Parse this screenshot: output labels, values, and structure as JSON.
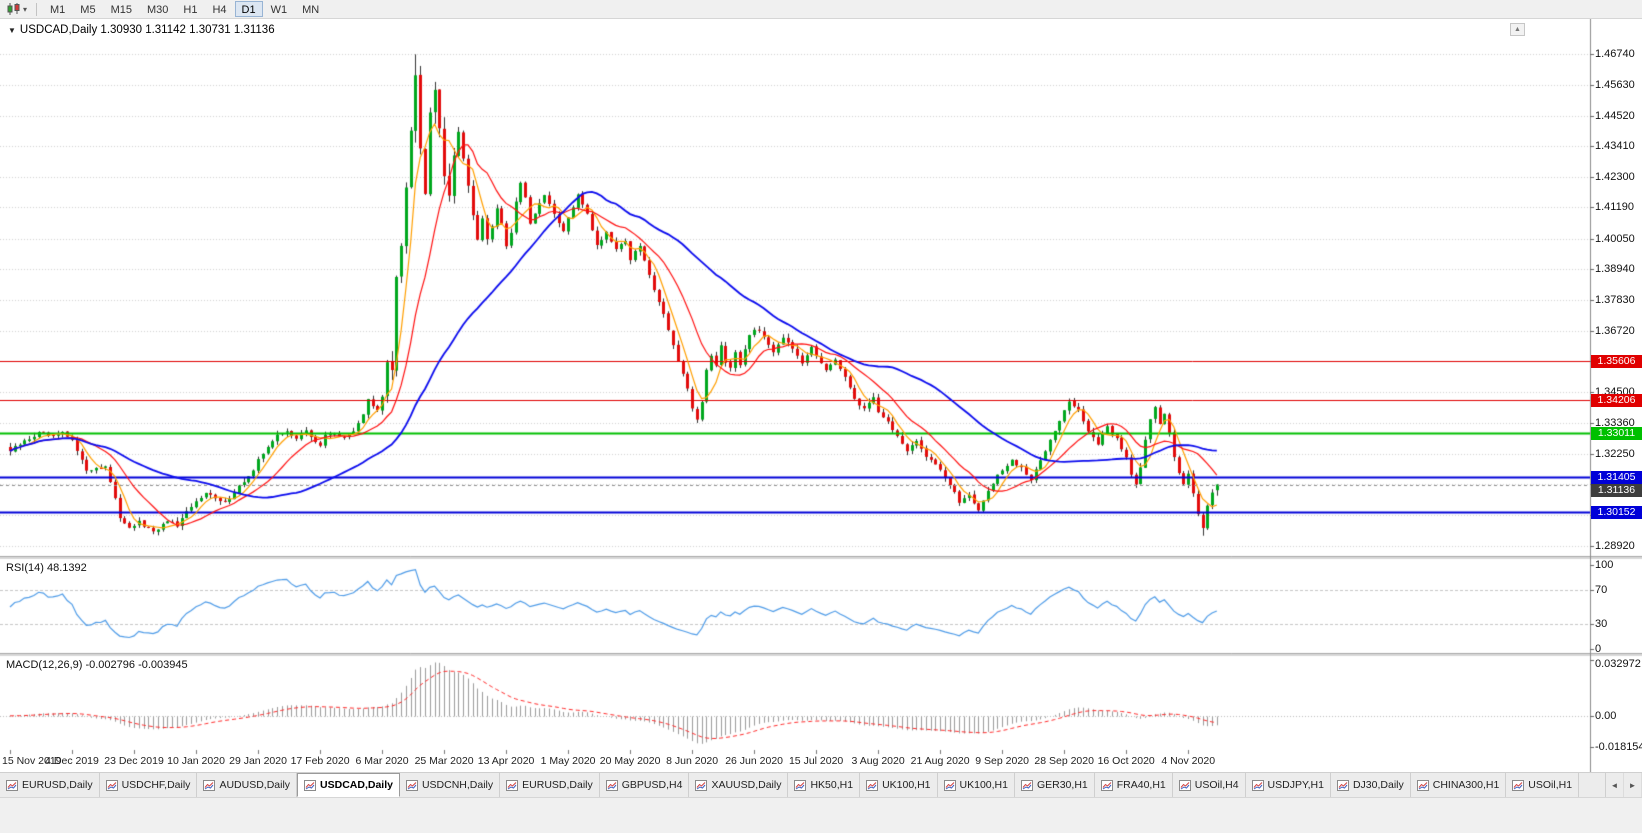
{
  "toolbar": {
    "timeframes": [
      "M1",
      "M5",
      "M15",
      "M30",
      "H1",
      "H4",
      "D1",
      "W1",
      "MN"
    ],
    "active_timeframe": "D1",
    "dropdown_icon": "▾"
  },
  "chart": {
    "title_line": "USDCAD,Daily 1.30930 1.31142 1.30731 1.31136",
    "expand_icon": "▼",
    "scroll_up_icon": "▲",
    "price_axis_labels": [
      "1.46740",
      "1.45630",
      "1.44520",
      "1.43410",
      "1.42300",
      "1.41190",
      "1.40050",
      "1.38940",
      "1.37830",
      "1.36720",
      "1.35610",
      "1.34500",
      "1.33360",
      "1.32250",
      "1.31140",
      "1.30030",
      "1.28920"
    ],
    "levels": [
      {
        "label": "1.35606",
        "price": 1.35606,
        "color": "#e00000",
        "width": 1
      },
      {
        "label": "1.34206",
        "price": 1.34206,
        "color": "#e00000",
        "width": 1
      },
      {
        "label": "1.33011",
        "price": 1.33011,
        "color": "#00c000",
        "width": 2
      },
      {
        "label": "1.31405",
        "price": 1.31405,
        "color": "#0000d8",
        "width": 2
      },
      {
        "label": "1.30152",
        "price": 1.30152,
        "color": "#0000d8",
        "width": 2
      }
    ],
    "current_price": {
      "label": "1.31136",
      "value": 1.31136,
      "color": "#3d3d3d"
    },
    "date_labels": [
      "15 Nov 2019",
      "4 Dec 2019",
      "23 Dec 2019",
      "10 Jan 2020",
      "29 Jan 2020",
      "17 Feb 2020",
      "6 Mar 2020",
      "25 Mar 2020",
      "13 Apr 2020",
      "1 May 2020",
      "20 May 2020",
      "8 Jun 2020",
      "26 Jun 2020",
      "15 Jul 2020",
      "3 Aug 2020",
      "21 Aug 2020",
      "9 Sep 2020",
      "28 Sep 2020",
      "16 Oct 2020",
      "4 Nov 2020"
    ]
  },
  "rsi": {
    "title": "RSI(14) 48.1392",
    "period": 14,
    "current_value": "48.1392",
    "scale_labels": [
      "100",
      "70",
      "30",
      "0"
    ]
  },
  "macd": {
    "title": "MACD(12,26,9) -0.002796 -0.003945",
    "params": "12,26,9",
    "main_value": "-0.002796",
    "signal_value": "-0.003945",
    "scale_labels": [
      "0.032972",
      "0.00",
      "-0.018154"
    ]
  },
  "tabs": {
    "items": [
      "EURUSD,Daily",
      "USDCHF,Daily",
      "AUDUSD,Daily",
      "USDCAD,Daily",
      "USDCNH,Daily",
      "EURUSD,Daily",
      "GBPUSD,H4",
      "XAUUSD,Daily",
      "HK50,H1",
      "UK100,H1",
      "UK100,H1",
      "GER30,H1",
      "FRA40,H1",
      "USOil,H4",
      "USDJPY,H1",
      "DJ30,Daily",
      "CHINA300,H1",
      "USOil,H1"
    ],
    "active_index": 3,
    "scroll_left_icon": "◄",
    "scroll_right_icon": "►"
  },
  "chart_data": {
    "type": "candlestick",
    "symbol": "USDCAD",
    "timeframe": "Daily",
    "bars": 254,
    "label_every_bars": 13,
    "first_candle_x": 10,
    "candle_step": 4.77,
    "y_range": [
      1.2858,
      1.4795
    ],
    "last_bar": {
      "open": 1.3093,
      "high": 1.31142,
      "low": 1.30731,
      "close": 1.31136
    },
    "session_high": {
      "index": 85,
      "price": 1.4674
    },
    "session_low": {
      "index": 250,
      "price": 1.2928
    },
    "price_path_anchors": [
      [
        0,
        1.3235
      ],
      [
        3,
        1.327
      ],
      [
        6,
        1.33
      ],
      [
        9,
        1.3285
      ],
      [
        11,
        1.33
      ],
      [
        13,
        1.327
      ],
      [
        15,
        1.321
      ],
      [
        16,
        1.316
      ],
      [
        18,
        1.3175
      ],
      [
        20,
        1.318
      ],
      [
        21,
        1.312
      ],
      [
        23,
        1.2995
      ],
      [
        25,
        1.296
      ],
      [
        27,
        1.2975
      ],
      [
        29,
        1.295
      ],
      [
        31,
        1.2945
      ],
      [
        33,
        1.2985
      ],
      [
        35,
        1.296
      ],
      [
        37,
        1.301
      ],
      [
        39,
        1.305
      ],
      [
        41,
        1.309
      ],
      [
        43,
        1.306
      ],
      [
        45,
        1.3045
      ],
      [
        47,
        1.309
      ],
      [
        49,
        1.3125
      ],
      [
        51,
        1.316
      ],
      [
        52,
        1.32
      ],
      [
        54,
        1.3255
      ],
      [
        56,
        1.329
      ],
      [
        58,
        1.3305
      ],
      [
        60,
        1.3285
      ],
      [
        62,
        1.3305
      ],
      [
        64,
        1.327
      ],
      [
        65,
        1.3255
      ],
      [
        66,
        1.329
      ],
      [
        68,
        1.3305
      ],
      [
        70,
        1.328
      ],
      [
        72,
        1.331
      ],
      [
        74,
        1.337
      ],
      [
        75,
        1.342
      ],
      [
        76,
        1.3395
      ],
      [
        77,
        1.338
      ],
      [
        78,
        1.343
      ],
      [
        79,
        1.356
      ],
      [
        80,
        1.354
      ],
      [
        81,
        1.386
      ],
      [
        82,
        1.398
      ],
      [
        83,
        1.418
      ],
      [
        84,
        1.439
      ],
      [
        85,
        1.46
      ],
      [
        86,
        1.435
      ],
      [
        87,
        1.418
      ],
      [
        88,
        1.448
      ],
      [
        89,
        1.455
      ],
      [
        90,
        1.44
      ],
      [
        91,
        1.425
      ],
      [
        92,
        1.418
      ],
      [
        93,
        1.432
      ],
      [
        94,
        1.44
      ],
      [
        95,
        1.431
      ],
      [
        96,
        1.418
      ],
      [
        97,
        1.409
      ],
      [
        98,
        1.402
      ],
      [
        99,
        1.408
      ],
      [
        100,
        1.399
      ],
      [
        101,
        1.405
      ],
      [
        102,
        1.412
      ],
      [
        103,
        1.406
      ],
      [
        104,
        1.398
      ],
      [
        105,
        1.403
      ],
      [
        106,
        1.414
      ],
      [
        107,
        1.421
      ],
      [
        108,
        1.415
      ],
      [
        109,
        1.406
      ],
      [
        110,
        1.409
      ],
      [
        112,
        1.417
      ],
      [
        114,
        1.409
      ],
      [
        116,
        1.403
      ],
      [
        117,
        1.408
      ],
      [
        119,
        1.416
      ],
      [
        121,
        1.41
      ],
      [
        123,
        1.398
      ],
      [
        125,
        1.403
      ],
      [
        127,
        1.397
      ],
      [
        129,
        1.4
      ],
      [
        130,
        1.393
      ],
      [
        132,
        1.398
      ],
      [
        134,
        1.387
      ],
      [
        136,
        1.378
      ],
      [
        138,
        1.368
      ],
      [
        140,
        1.356
      ],
      [
        142,
        1.345
      ],
      [
        143,
        1.339
      ],
      [
        144,
        1.335
      ],
      [
        145,
        1.342
      ],
      [
        146,
        1.352
      ],
      [
        147,
        1.358
      ],
      [
        148,
        1.355
      ],
      [
        149,
        1.362
      ],
      [
        150,
        1.356
      ],
      [
        151,
        1.354
      ],
      [
        152,
        1.36
      ],
      [
        153,
        1.355
      ],
      [
        154,
        1.361
      ],
      [
        155,
        1.366
      ],
      [
        156,
        1.368
      ],
      [
        158,
        1.365
      ],
      [
        160,
        1.36
      ],
      [
        162,
        1.365
      ],
      [
        164,
        1.36
      ],
      [
        166,
        1.355
      ],
      [
        168,
        1.361
      ],
      [
        169,
        1.358
      ],
      [
        171,
        1.353
      ],
      [
        173,
        1.356
      ],
      [
        175,
        1.351
      ],
      [
        177,
        1.342
      ],
      [
        179,
        1.339
      ],
      [
        181,
        1.343
      ],
      [
        182,
        1.338
      ],
      [
        184,
        1.334
      ],
      [
        186,
        1.329
      ],
      [
        188,
        1.323
      ],
      [
        190,
        1.327
      ],
      [
        192,
        1.322
      ],
      [
        194,
        1.319
      ],
      [
        195,
        1.317
      ],
      [
        197,
        1.311
      ],
      [
        199,
        1.305
      ],
      [
        201,
        1.308
      ],
      [
        203,
        1.302
      ],
      [
        205,
        1.309
      ],
      [
        207,
        1.315
      ],
      [
        208,
        1.316
      ],
      [
        210,
        1.32
      ],
      [
        212,
        1.317
      ],
      [
        214,
        1.313
      ],
      [
        216,
        1.32
      ],
      [
        218,
        1.328
      ],
      [
        220,
        1.335
      ],
      [
        221,
        1.338
      ],
      [
        222,
        1.3415
      ],
      [
        224,
        1.338
      ],
      [
        226,
        1.331
      ],
      [
        228,
        1.326
      ],
      [
        230,
        1.332
      ],
      [
        232,
        1.328
      ],
      [
        234,
        1.321
      ],
      [
        235,
        1.315
      ],
      [
        236,
        1.312
      ],
      [
        237,
        1.318
      ],
      [
        238,
        1.328
      ],
      [
        239,
        1.335
      ],
      [
        240,
        1.339
      ],
      [
        241,
        1.333
      ],
      [
        242,
        1.337
      ],
      [
        243,
        1.33
      ],
      [
        244,
        1.322
      ],
      [
        245,
        1.316
      ],
      [
        246,
        1.312
      ],
      [
        247,
        1.315
      ],
      [
        248,
        1.308
      ],
      [
        249,
        1.301
      ],
      [
        250,
        1.296
      ],
      [
        251,
        1.304
      ],
      [
        252,
        1.309
      ],
      [
        253,
        1.3114
      ]
    ],
    "moving_averages": [
      {
        "name": "fast",
        "period": 5,
        "color": "#ff9f00"
      },
      {
        "name": "mid",
        "period": 13,
        "color": "#ff1111"
      },
      {
        "name": "slow",
        "period": 40,
        "color": "#0b0bee"
      }
    ],
    "rsi_period": 14,
    "macd_params": [
      12,
      26,
      9
    ],
    "colors": {
      "bull": "#00a81e",
      "bear": "#e30b0b",
      "wick": "#333333",
      "rsi": "#4f9ce8",
      "macd_hist": "#9b9b9b",
      "macd_signal": "#ff2a2a",
      "grid": "#d2d2d2",
      "axis_line": "#8a8a8a"
    }
  }
}
